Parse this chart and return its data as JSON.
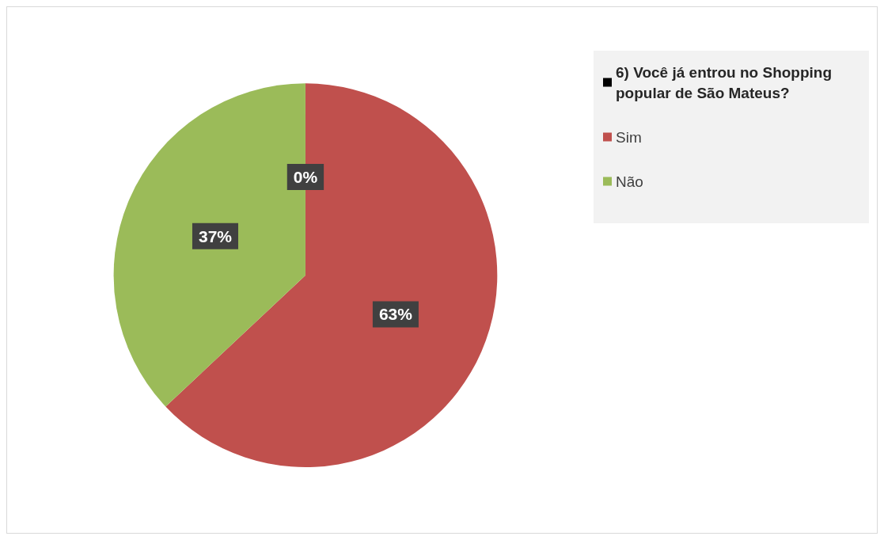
{
  "chart_data": {
    "type": "pie",
    "categories": [
      "6) Você já entrou no Shopping popular de São Mateus?",
      "Sim",
      "Não"
    ],
    "values": [
      0,
      63,
      37
    ],
    "colors": [
      "#000000",
      "#c0504d",
      "#9bbb59"
    ],
    "value_labels": [
      "0%",
      "63%",
      "37%"
    ],
    "legend": "top right"
  }
}
